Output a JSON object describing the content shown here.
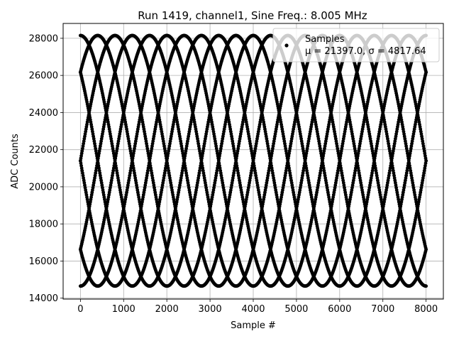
{
  "chart_data": {
    "type": "scatter",
    "title": "Run 1419, channel1, Sine Freq.: 8.005 MHz",
    "xlabel": "Sample #",
    "ylabel": "ADC Counts",
    "xlim": [
      -400,
      8400
    ],
    "ylim": [
      13950,
      28800
    ],
    "xticks": [
      0,
      1000,
      2000,
      3000,
      4000,
      5000,
      6000,
      7000,
      8000
    ],
    "yticks": [
      14000,
      16000,
      18000,
      20000,
      22000,
      24000,
      26000,
      28000
    ],
    "grid": true,
    "legend": {
      "placement": "top-right",
      "label": "Samples",
      "stats": "μ = 21397.0, σ = 4817.64"
    },
    "series": [
      {
        "name": "Samples",
        "color": "#000000",
        "model": "sine",
        "offset": 21400,
        "amplitude": 6750,
        "period_samples": 3200,
        "phases_deg": [
          -90,
          -45,
          0,
          45,
          90,
          135,
          180,
          225
        ],
        "x_range": [
          0,
          8000
        ],
        "n_points_per_phase": 800
      }
    ]
  }
}
